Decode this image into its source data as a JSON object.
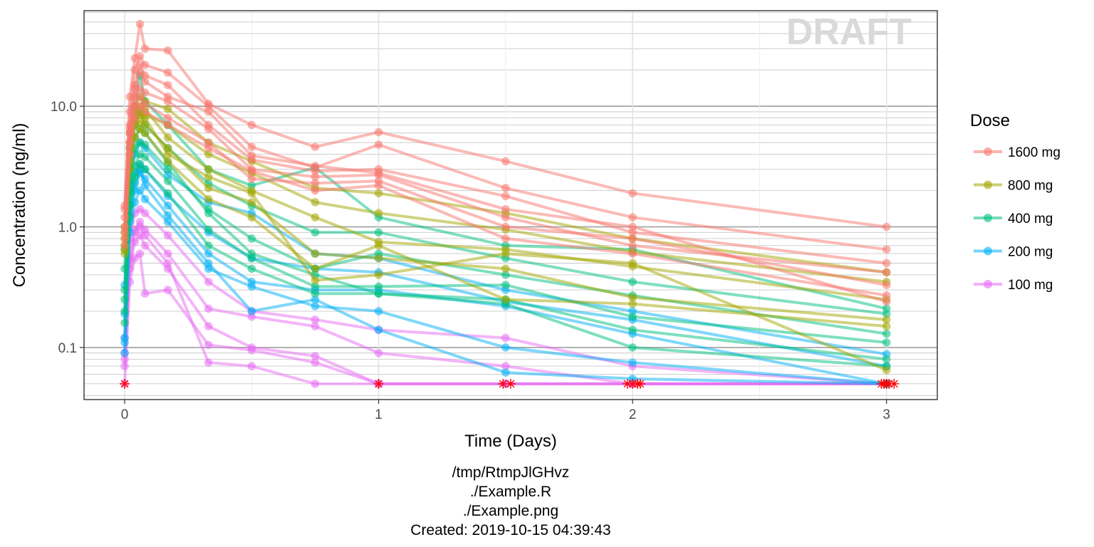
{
  "chart_data": {
    "type": "line",
    "title": "",
    "xlabel": "Time (Days)",
    "ylabel": "Concentration (ng/ml)",
    "y_scale": "log10",
    "xlim": [
      -0.16,
      3.2
    ],
    "ylim": [
      0.037,
      62
    ],
    "x_ticks": [
      0,
      1,
      2,
      3
    ],
    "x_tick_labels": [
      "0",
      "1",
      "2",
      "3"
    ],
    "y_ticks": [
      0.1,
      1.0,
      10.0
    ],
    "y_tick_labels": [
      "0.1",
      "1.0",
      "10.0"
    ],
    "grid": true,
    "watermark": "DRAFT",
    "legend": {
      "title": "Dose",
      "placement": "right"
    },
    "blq_marker": {
      "value": 0.05,
      "symbol": "asterisk",
      "color": "#ff0000"
    },
    "series": [
      {
        "name": "1600 mg",
        "color": "#f8766d",
        "subjects": [
          {
            "x": [
              0,
              0.02,
              0.04,
              0.06,
              0.08,
              0.17,
              0.33,
              0.5,
              0.75,
              1,
              1.5,
              2,
              3
            ],
            "y": [
              1.5,
              12.0,
              25.0,
              48.0,
              30.0,
              29.0,
              10.5,
              7.0,
              4.6,
              6.1,
              3.5,
              1.9,
              1.0
            ]
          },
          {
            "x": [
              0,
              0.02,
              0.04,
              0.06,
              0.08,
              0.17,
              0.33,
              0.5,
              0.75,
              1,
              1.5,
              2,
              3
            ],
            "y": [
              1.2,
              9.0,
              20.0,
              26.0,
              22.0,
              19.0,
              10.0,
              4.6,
              3.1,
              4.8,
              2.1,
              1.2,
              0.65
            ]
          },
          {
            "x": [
              0,
              0.02,
              0.04,
              0.06,
              0.08,
              0.17,
              0.33,
              0.5,
              0.75,
              1,
              1.5,
              2,
              3
            ],
            "y": [
              0.9,
              7.0,
              15.0,
              22.0,
              18.0,
              15.0,
              7.0,
              3.6,
              2.9,
              3.0,
              1.8,
              0.9,
              0.5
            ]
          },
          {
            "x": [
              0,
              0.02,
              0.04,
              0.06,
              0.08,
              0.17,
              0.33,
              0.5,
              0.75,
              1,
              1.5,
              2,
              3
            ],
            "y": [
              1.0,
              6.0,
              12.0,
              14.0,
              13.0,
              11.0,
              6.5,
              3.0,
              2.6,
              2.7,
              1.2,
              0.7,
              0.42
            ]
          },
          {
            "x": [
              0,
              0.02,
              0.04,
              0.06,
              0.08,
              0.17,
              0.33,
              0.5,
              0.75,
              1,
              1.5,
              2,
              3
            ],
            "y": [
              0.8,
              5.0,
              10.0,
              12.0,
              10.5,
              8.0,
              5.0,
              2.5,
              2.3,
              2.4,
              1.0,
              0.8,
              0.33
            ]
          },
          {
            "x": [
              0,
              0.02,
              0.04,
              0.06,
              0.08,
              0.17,
              0.33,
              0.5,
              0.75,
              1,
              1.5,
              2,
              3
            ],
            "y": [
              0.7,
              4.0,
              8.0,
              10.0,
              9.0,
              7.0,
              4.5,
              2.9,
              2.0,
              2.2,
              0.8,
              0.6,
              0.27
            ]
          },
          {
            "x": [
              0,
              0.02,
              0.04,
              0.06,
              0.08,
              0.17,
              0.33,
              0.5,
              0.75,
              1,
              1.5,
              2,
              3
            ],
            "y": [
              1.4,
              6.5,
              14.0,
              19.0,
              16.0,
              12.0,
              9.0,
              3.9,
              3.2,
              2.8,
              1.4,
              1.0,
              0.24
            ]
          }
        ]
      },
      {
        "name": "800 mg",
        "color": "#a3a500",
        "subjects": [
          {
            "x": [
              0,
              0.02,
              0.04,
              0.06,
              0.08,
              0.17,
              0.33,
              0.5,
              0.75,
              1,
              1.5,
              2,
              3
            ],
            "y": [
              0.7,
              5.0,
              10.0,
              12.0,
              11.0,
              9.5,
              5.0,
              3.5,
              2.1,
              1.9,
              1.3,
              0.8,
              0.42
            ]
          },
          {
            "x": [
              0,
              0.02,
              0.04,
              0.06,
              0.08,
              0.17,
              0.33,
              0.5,
              0.75,
              1,
              1.5,
              2,
              3
            ],
            "y": [
              0.6,
              4.0,
              8.0,
              9.0,
              8.5,
              7.0,
              4.0,
              2.8,
              1.6,
              1.3,
              0.95,
              0.62,
              0.35
            ]
          },
          {
            "x": [
              0,
              0.02,
              0.04,
              0.06,
              0.08,
              0.17,
              0.33,
              0.5,
              0.75,
              1,
              1.5,
              2,
              3
            ],
            "y": [
              0.9,
              6.0,
              9.0,
              10.0,
              9.5,
              5.5,
              3.0,
              2.0,
              1.2,
              0.75,
              0.65,
              0.47,
              0.25
            ]
          },
          {
            "x": [
              0,
              0.02,
              0.04,
              0.06,
              0.08,
              0.17,
              0.33,
              0.5,
              0.75,
              1,
              1.5,
              2,
              3
            ],
            "y": [
              0.8,
              3.5,
              7.0,
              7.5,
              7.0,
              4.5,
              2.1,
              1.6,
              0.6,
              0.55,
              0.45,
              0.26,
              0.17
            ]
          },
          {
            "x": [
              0,
              0.02,
              0.04,
              0.06,
              0.08,
              0.17,
              0.33,
              0.5,
              0.75,
              1,
              1.5,
              2,
              3
            ],
            "y": [
              0.65,
              3.0,
              5.5,
              6.5,
              6.0,
              3.5,
              1.7,
              1.2,
              0.45,
              0.7,
              0.25,
              0.23,
              0.15
            ]
          },
          {
            "x": [
              0,
              0.02,
              0.04,
              0.06,
              0.08,
              0.17,
              0.33,
              0.5,
              0.75,
              1,
              1.5,
              2,
              3
            ],
            "y": [
              1.0,
              4.5,
              7.5,
              8.5,
              8.0,
              4.0,
              2.6,
              1.9,
              0.36,
              0.4,
              0.6,
              0.5,
              0.065
            ]
          }
        ]
      },
      {
        "name": "400 mg",
        "color": "#00bf7d",
        "subjects": [
          {
            "x": [
              0,
              0.02,
              0.04,
              0.06,
              0.08,
              0.17,
              0.33,
              0.5,
              0.75,
              1,
              1.5,
              2,
              3
            ],
            "y": [
              0.65,
              4.5,
              10.0,
              18.0,
              11.0,
              7.0,
              3.0,
              2.2,
              3.1,
              1.2,
              0.7,
              0.65,
              0.21
            ]
          },
          {
            "x": [
              0,
              0.02,
              0.04,
              0.06,
              0.08,
              0.17,
              0.33,
              0.5,
              0.75,
              1,
              1.5,
              2,
              3
            ],
            "y": [
              0.45,
              3.0,
              7.0,
              9.0,
              7.0,
              4.5,
              2.3,
              1.5,
              0.9,
              0.9,
              0.55,
              0.35,
              0.19
            ]
          },
          {
            "x": [
              0,
              0.02,
              0.04,
              0.06,
              0.08,
              0.17,
              0.33,
              0.5,
              0.75,
              1,
              1.5,
              2,
              3
            ],
            "y": [
              0.3,
              2.0,
              4.5,
              5.0,
              4.8,
              3.0,
              1.4,
              0.8,
              0.45,
              0.6,
              0.4,
              0.27,
              0.13
            ]
          },
          {
            "x": [
              0,
              0.02,
              0.04,
              0.06,
              0.08,
              0.17,
              0.33,
              0.5,
              0.75,
              1,
              1.5,
              2,
              3
            ],
            "y": [
              0.2,
              1.5,
              3.2,
              4.0,
              3.8,
              2.4,
              0.95,
              0.55,
              0.32,
              0.32,
              0.33,
              0.18,
              0.11
            ]
          },
          {
            "x": [
              0,
              0.02,
              0.04,
              0.06,
              0.08,
              0.17,
              0.33,
              0.5,
              0.75,
              1,
              1.5,
              2,
              3
            ],
            "y": [
              0.16,
              1.2,
              2.6,
              3.3,
              3.0,
              1.9,
              0.7,
              0.45,
              0.28,
              0.28,
              0.25,
              0.14,
              0.08
            ]
          },
          {
            "x": [
              0,
              0.02,
              0.04,
              0.06,
              0.08,
              0.17,
              0.33,
              0.5,
              0.75,
              1,
              1.5,
              2,
              3
            ],
            "y": [
              0.25,
              2.4,
              5.5,
              6.5,
              6.0,
              3.4,
              1.3,
              0.6,
              0.4,
              0.28,
              0.23,
              0.1,
              0.07
            ]
          }
        ]
      },
      {
        "name": "200 mg",
        "color": "#00b0f6",
        "subjects": [
          {
            "x": [
              0,
              0.02,
              0.04,
              0.06,
              0.08,
              0.17,
              0.33,
              0.5,
              0.75,
              1,
              1.5,
              2,
              3
            ],
            "y": [
              0.33,
              2.2,
              4.0,
              5.0,
              4.5,
              2.7,
              1.6,
              1.3,
              0.6,
              0.55,
              0.3,
              0.2,
              0.088
            ]
          },
          {
            "x": [
              0,
              0.02,
              0.04,
              0.06,
              0.08,
              0.17,
              0.33,
              0.5,
              0.75,
              1,
              1.5,
              2,
              3
            ],
            "y": [
              0.19,
              1.5,
              2.8,
              3.3,
              3.0,
              1.8,
              0.9,
              0.55,
              0.45,
              0.42,
              0.24,
              0.17,
              0.07
            ]
          },
          {
            "x": [
              0,
              0.02,
              0.04,
              0.06,
              0.08,
              0.17,
              0.33,
              0.5,
              0.75,
              1,
              1.5,
              2,
              3
            ],
            "y": [
              0.11,
              1.1,
              2.0,
              2.8,
              2.5,
              1.5,
              0.6,
              0.35,
              0.3,
              0.3,
              0.22,
              0.13,
              0.05
            ]
          },
          {
            "x": [
              0,
              0.02,
              0.04,
              0.06,
              0.08,
              0.17,
              0.33,
              0.5,
              0.75,
              1,
              1.5,
              2,
              3
            ],
            "y": [
              0.09,
              0.9,
              1.6,
              2.0,
              1.7,
              1.1,
              0.45,
              0.32,
              0.22,
              0.2,
              0.1,
              0.075,
              0.05
            ]
          },
          {
            "x": [
              0,
              0.02,
              0.04,
              0.06,
              0.08,
              0.17,
              0.33,
              0.5,
              0.75,
              1,
              1.5,
              2,
              3
            ],
            "y": [
              0.12,
              1.25,
              2.3,
              3.0,
              2.2,
              1.25,
              0.5,
              0.2,
              0.25,
              0.14,
              0.062,
              0.055,
              0.05
            ]
          }
        ]
      },
      {
        "name": "100 mg",
        "color": "#e76bf3",
        "subjects": [
          {
            "x": [
              0,
              0.02,
              0.04,
              0.06,
              0.08,
              0.17,
              0.33,
              0.5,
              0.75,
              1,
              1.5,
              2,
              3
            ],
            "y": [
              0.12,
              0.8,
              1.3,
              1.4,
              1.3,
              0.85,
              0.35,
              0.2,
              0.17,
              0.14,
              0.12,
              0.07,
              0.05
            ]
          },
          {
            "x": [
              0,
              0.02,
              0.04,
              0.06,
              0.08,
              0.17,
              0.33,
              0.5,
              0.75,
              1,
              1.5,
              2,
              3
            ],
            "y": [
              0.09,
              0.55,
              0.95,
              1.1,
              0.95,
              0.6,
              0.21,
              0.18,
              0.15,
              0.09,
              0.07,
              0.05,
              0.05
            ]
          },
          {
            "x": [
              0,
              0.02,
              0.04,
              0.06,
              0.08,
              0.17,
              0.33,
              0.5,
              0.75,
              1,
              1.5,
              2,
              3
            ],
            "y": [
              0.07,
              0.45,
              0.75,
              0.85,
              0.7,
              0.45,
              0.15,
              0.1,
              0.085,
              0.05,
              0.05,
              0.05,
              0.05
            ]
          },
          {
            "x": [
              0,
              0.02,
              0.04,
              0.06,
              0.08,
              0.17,
              0.33,
              0.5,
              0.75,
              1,
              1.5,
              2,
              3
            ],
            "y": [
              0.05,
              0.35,
              0.55,
              0.6,
              0.28,
              0.3,
              0.105,
              0.095,
              0.075,
              0.05,
              0.05,
              0.05,
              0.05
            ]
          },
          {
            "x": [
              0,
              0.02,
              0.04,
              0.06,
              0.08,
              0.17,
              0.33,
              0.5,
              0.75,
              1,
              1.5,
              2,
              3
            ],
            "y": [
              0.08,
              0.5,
              0.9,
              1.0,
              0.85,
              0.5,
              0.075,
              0.07,
              0.05,
              0.05,
              0.05,
              0.05,
              0.05
            ]
          }
        ]
      }
    ],
    "blq_points": [
      {
        "x": 0,
        "y": 0.05
      },
      {
        "x": 1,
        "y": 0.05
      },
      {
        "x": 1.49,
        "y": 0.05
      },
      {
        "x": 1.52,
        "y": 0.05
      },
      {
        "x": 1.98,
        "y": 0.05
      },
      {
        "x": 2.0,
        "y": 0.05
      },
      {
        "x": 2.02,
        "y": 0.05
      },
      {
        "x": 2.03,
        "y": 0.05
      },
      {
        "x": 2.98,
        "y": 0.05
      },
      {
        "x": 2.99,
        "y": 0.05
      },
      {
        "x": 3.0,
        "y": 0.05
      },
      {
        "x": 3.01,
        "y": 0.05
      },
      {
        "x": 3.03,
        "y": 0.05
      }
    ]
  },
  "caption": {
    "line1": "/tmp/RtmpJlGHvz",
    "line2": "./Example.R",
    "line3": "./Example.png",
    "line4": "Created: 2019-10-15 04:39:43"
  }
}
